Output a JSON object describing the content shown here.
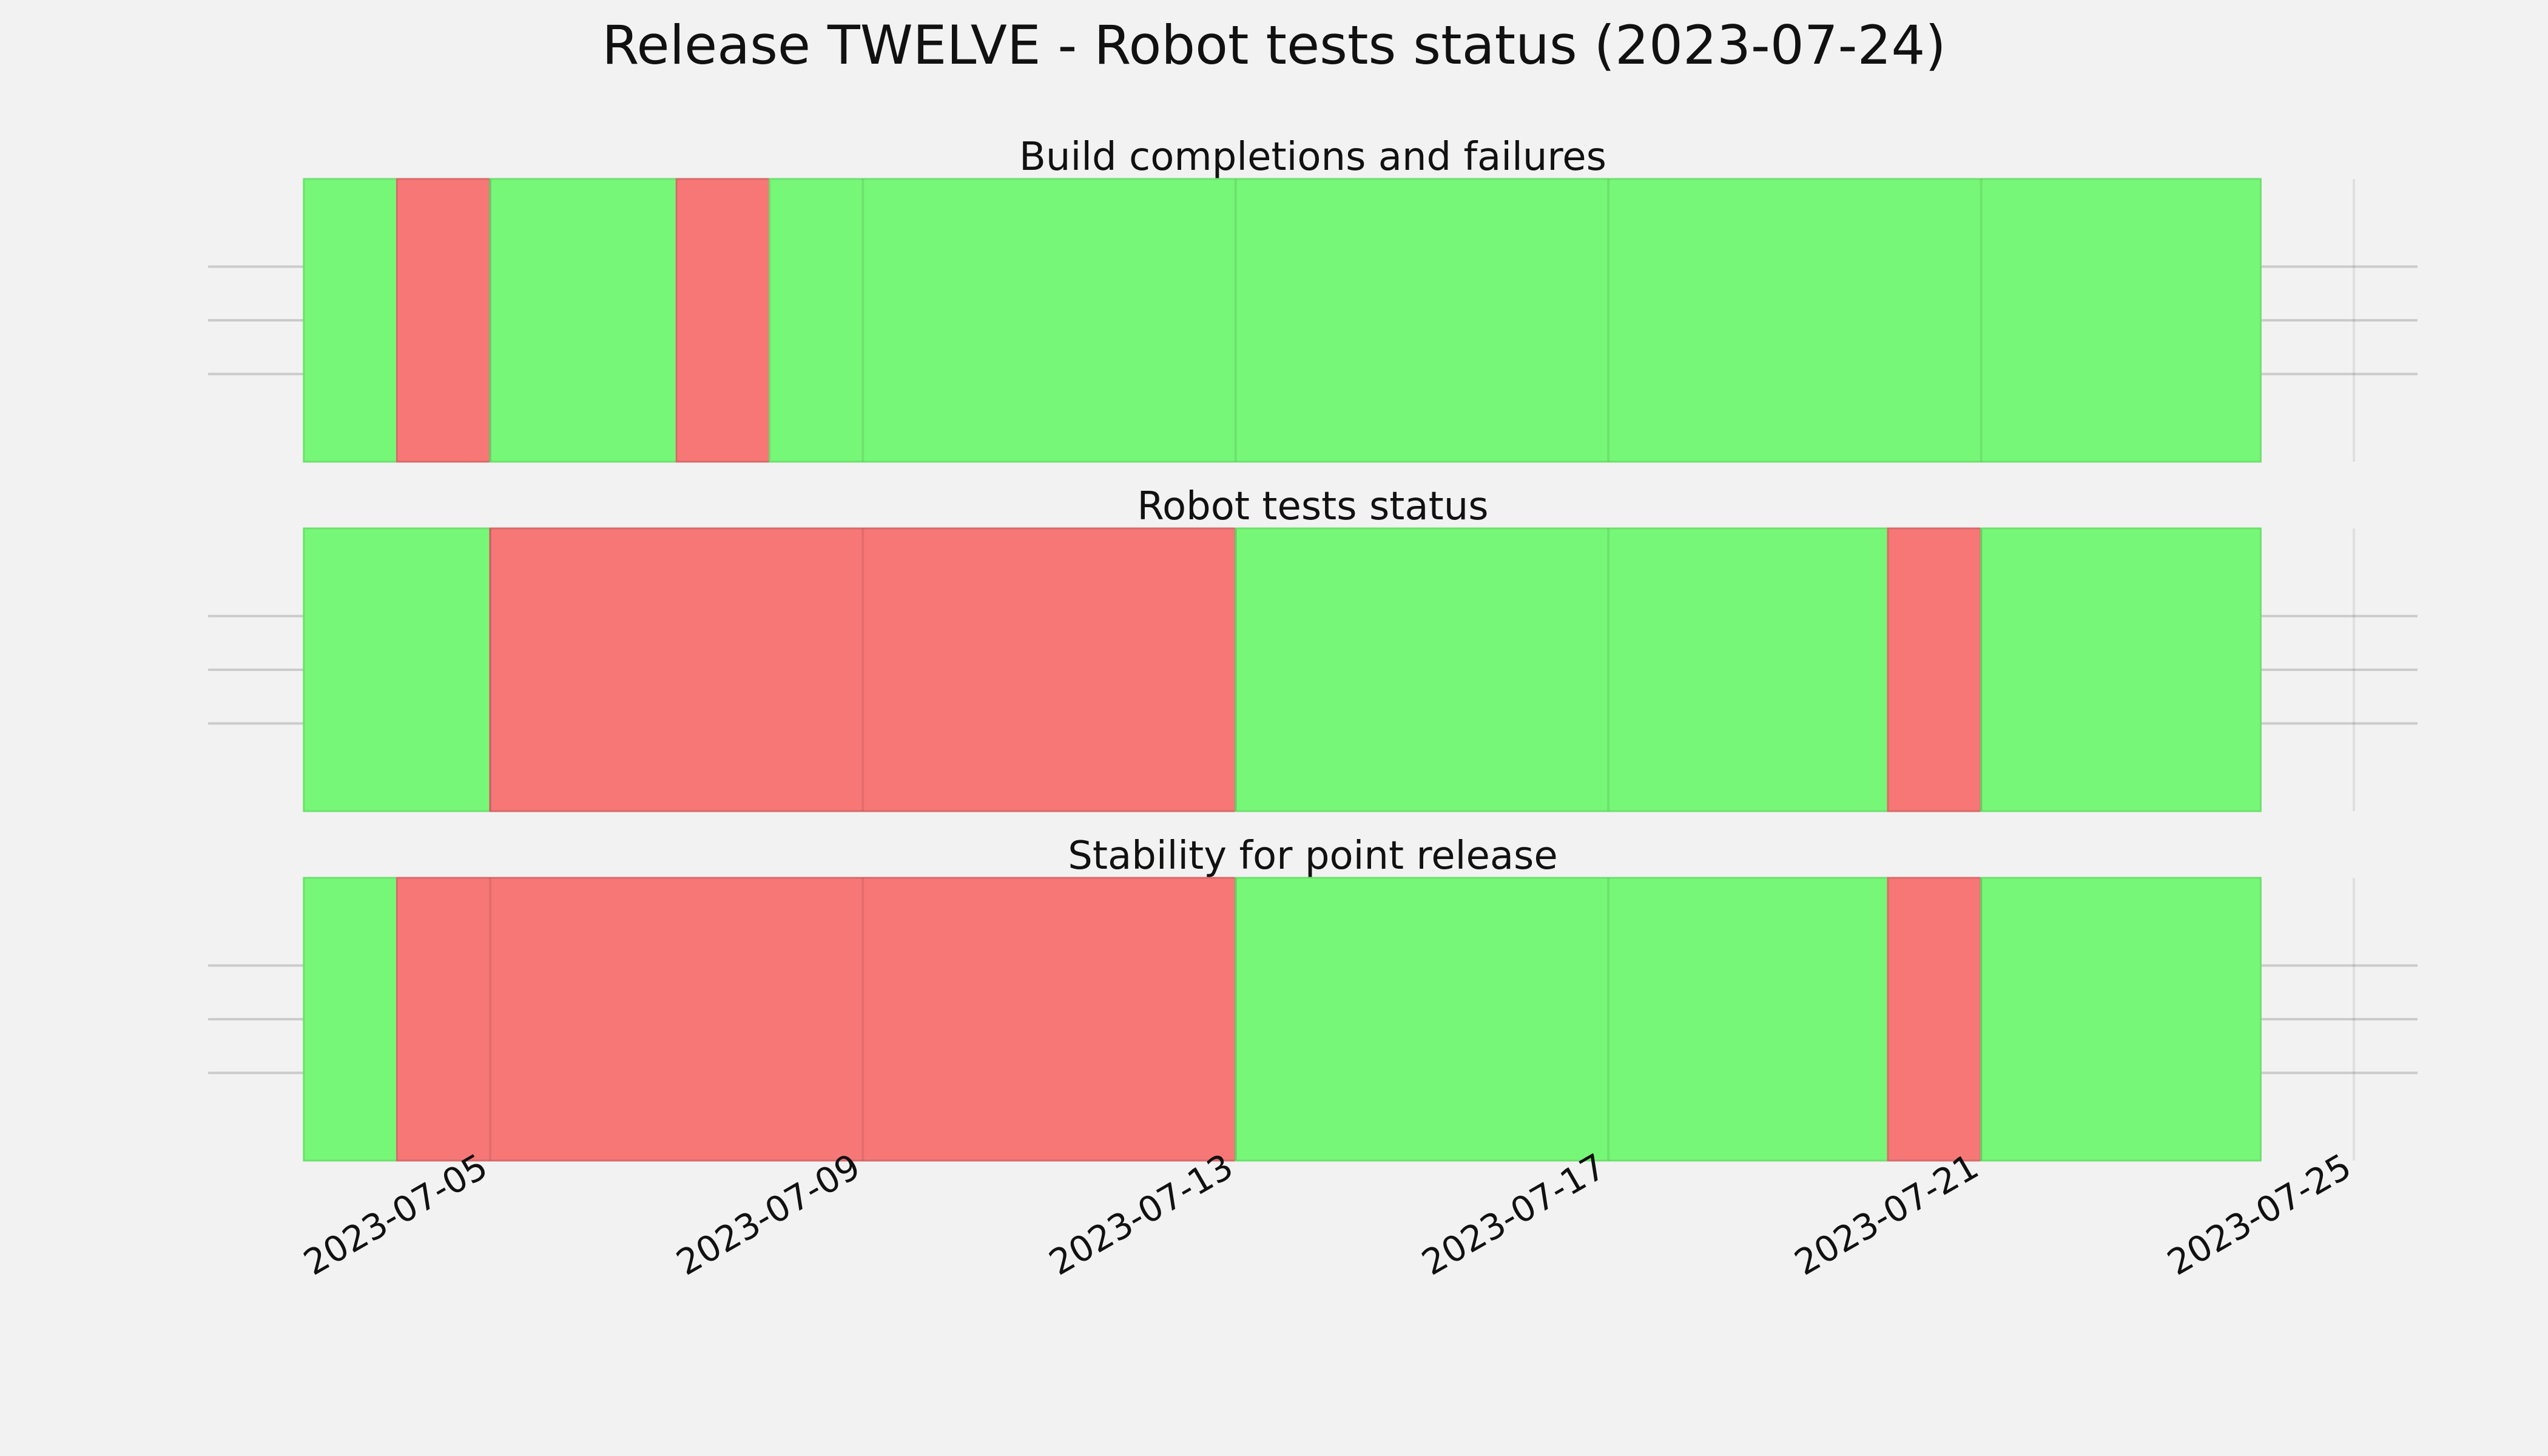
{
  "chart_data": {
    "type": "timeline",
    "title": "Release TWELVE - Robot tests status (2023-07-24)",
    "x_range": [
      "2023-07-03",
      "2023-07-24"
    ],
    "x_ticks": [
      "2023-07-05",
      "2023-07-09",
      "2023-07-13",
      "2023-07-17",
      "2023-07-21",
      "2023-07-25"
    ],
    "grid": true,
    "colors": {
      "pass": "#77f777",
      "fail": "#f77777",
      "background": "#f2f2f2",
      "grid": "#cbcbcb"
    },
    "panels": [
      {
        "title": "Build completions and failures",
        "segments": [
          {
            "start": "2023-07-03",
            "end": "2023-07-04",
            "status": "pass"
          },
          {
            "start": "2023-07-04",
            "end": "2023-07-05",
            "status": "fail"
          },
          {
            "start": "2023-07-05",
            "end": "2023-07-07",
            "status": "pass"
          },
          {
            "start": "2023-07-07",
            "end": "2023-07-08",
            "status": "fail"
          },
          {
            "start": "2023-07-08",
            "end": "2023-07-24",
            "status": "pass"
          }
        ]
      },
      {
        "title": "Robot tests status",
        "segments": [
          {
            "start": "2023-07-03",
            "end": "2023-07-05",
            "status": "pass"
          },
          {
            "start": "2023-07-05",
            "end": "2023-07-13",
            "status": "fail"
          },
          {
            "start": "2023-07-13",
            "end": "2023-07-20",
            "status": "pass"
          },
          {
            "start": "2023-07-20",
            "end": "2023-07-21",
            "status": "fail"
          },
          {
            "start": "2023-07-21",
            "end": "2023-07-24",
            "status": "pass"
          }
        ]
      },
      {
        "title": "Stability for point release",
        "segments": [
          {
            "start": "2023-07-03",
            "end": "2023-07-04",
            "status": "pass"
          },
          {
            "start": "2023-07-04",
            "end": "2023-07-13",
            "status": "fail"
          },
          {
            "start": "2023-07-13",
            "end": "2023-07-20",
            "status": "pass"
          },
          {
            "start": "2023-07-20",
            "end": "2023-07-21",
            "status": "fail"
          },
          {
            "start": "2023-07-21",
            "end": "2023-07-24",
            "status": "pass"
          }
        ]
      }
    ]
  }
}
